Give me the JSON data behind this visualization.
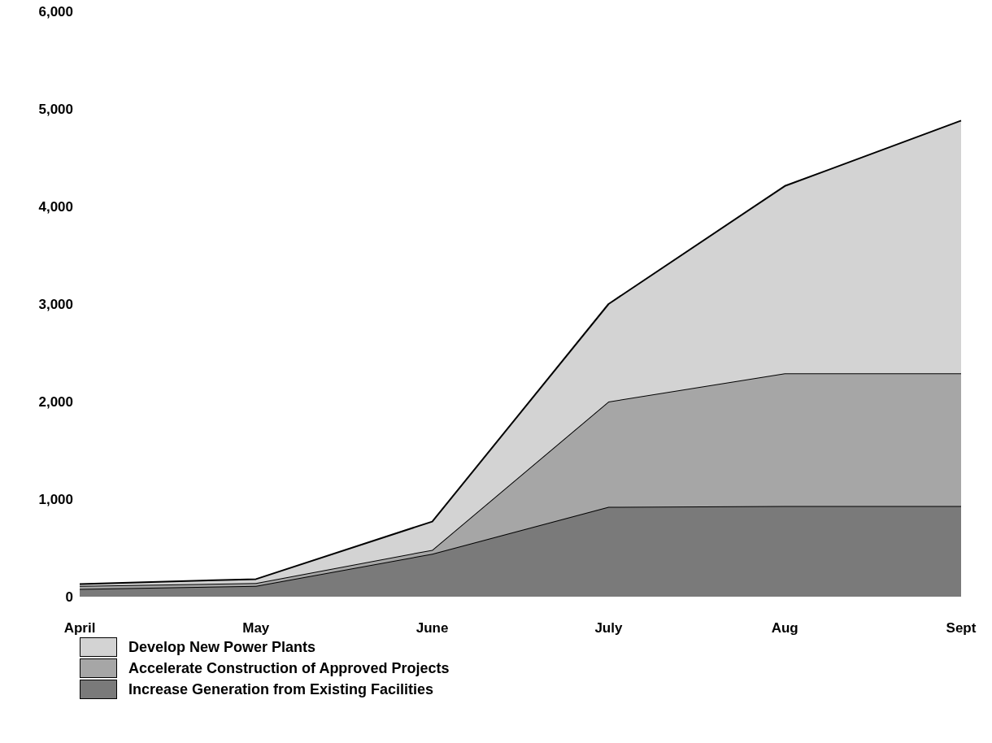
{
  "chart_data": {
    "type": "area",
    "stacked": true,
    "categories": [
      "April",
      "May",
      "June",
      "July",
      "Aug",
      "Sept"
    ],
    "series": [
      {
        "name": "Increase Generation from Existing Facilities",
        "color": "#7a7a7a",
        "values": [
          80,
          110,
          440,
          920,
          930,
          930
        ]
      },
      {
        "name": "Accelerate Construction of Approved Projects",
        "color": "#a6a6a6",
        "values": [
          30,
          30,
          40,
          1080,
          1360,
          1360
        ]
      },
      {
        "name": "Develop New Power Plants",
        "color": "#d3d3d3",
        "values": [
          20,
          40,
          290,
          1000,
          1920,
          2590
        ]
      }
    ],
    "ylim": [
      0,
      6000
    ],
    "yticks": [
      {
        "value": 0,
        "label": "0"
      },
      {
        "value": 1000,
        "label": "1,000"
      },
      {
        "value": 2000,
        "label": "2,000"
      },
      {
        "value": 3000,
        "label": "3,000"
      },
      {
        "value": 4000,
        "label": "4,000"
      },
      {
        "value": 5000,
        "label": "5,000"
      },
      {
        "value": 6000,
        "label": "6,000"
      }
    ],
    "grid": false,
    "legend": "bottom"
  }
}
